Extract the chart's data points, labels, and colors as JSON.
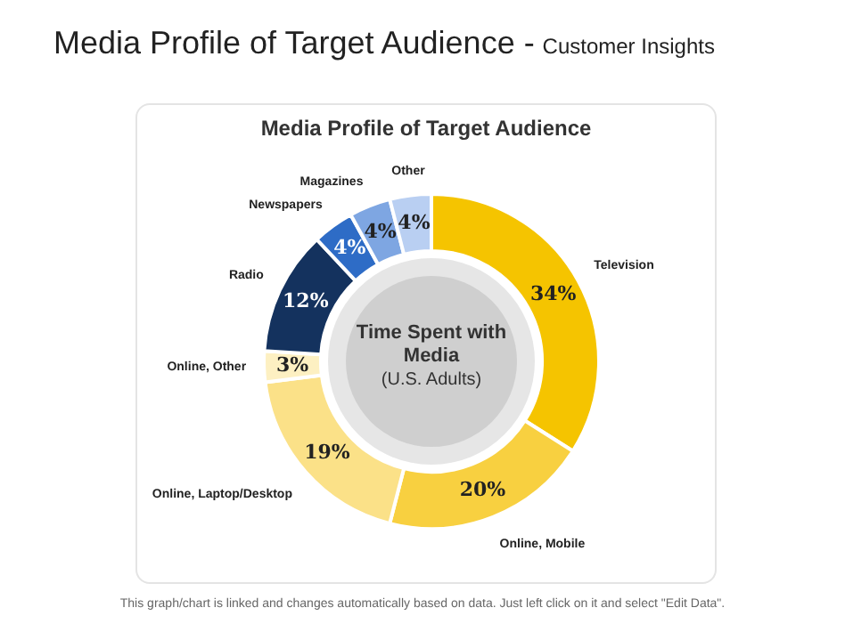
{
  "chart_data": {
    "type": "donut",
    "title": "Media Profile of Target Audience",
    "categories": [
      "Television",
      "Online, Mobile",
      "Online, Laptop/Desktop",
      "Online, Other",
      "Radio",
      "Newspapers",
      "Magazines",
      "Other"
    ],
    "values": [
      34,
      20,
      19,
      3,
      12,
      4,
      4,
      4
    ],
    "colors": [
      "#f5c400",
      "#f8d040",
      "#fbe188",
      "#fdf0c2",
      "#14325e",
      "#2e6cc6",
      "#7ea6e2",
      "#b9cff2"
    ],
    "value_labels": [
      "34%",
      "20%",
      "19%",
      "3%",
      "12%",
      "4%",
      "4%",
      "4%"
    ],
    "legend": false,
    "annotations": [
      "Media Profile of Target Audience -",
      "Customer Insights",
      "Time Spent with Media",
      "(U.S. Adults)",
      "This graph/chart is linked and changes automatically based on data. Just left click on it and select \"Edit Data\"."
    ]
  }
}
